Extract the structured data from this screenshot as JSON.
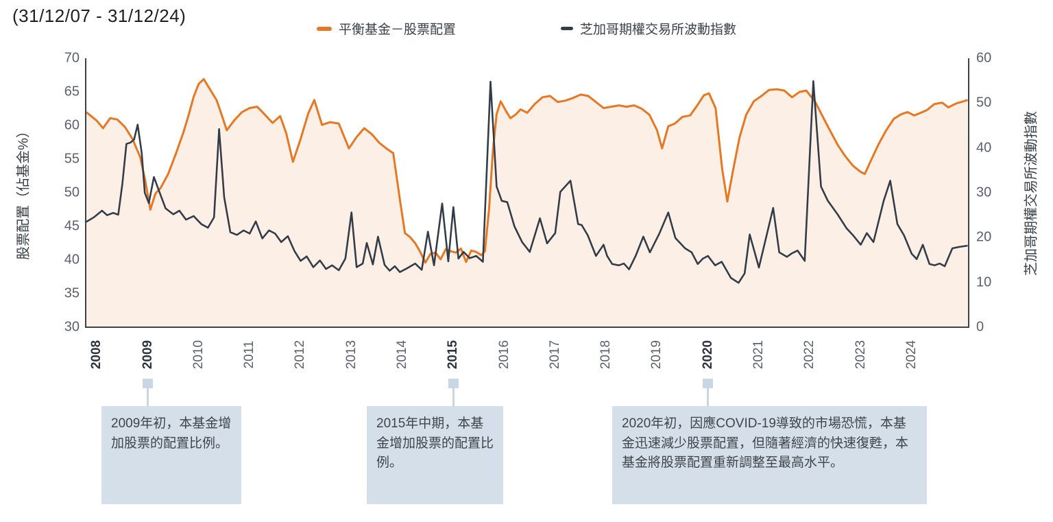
{
  "title": "(31/12/07 - 31/12/24)",
  "legend": [
    {
      "label": "平衡基金－股票配置",
      "color": "#e87722"
    },
    {
      "label": "芝加哥期權交易所波動指數",
      "color": "#333c49"
    }
  ],
  "axis_left": {
    "title": "股票配置（佔基金%）",
    "ticks": [
      70,
      65,
      60,
      55,
      50,
      45,
      40,
      35,
      30
    ]
  },
  "axis_right": {
    "title": "芝加哥期權交易所波動指數",
    "ticks": [
      60,
      50,
      40,
      30,
      20,
      10,
      0
    ]
  },
  "axis_x": {
    "labels": [
      2008,
      2009,
      2010,
      2011,
      2012,
      2013,
      2014,
      2015,
      2016,
      2017,
      2018,
      2019,
      2020,
      2021,
      2022,
      2023,
      2024
    ],
    "bold_labels": [
      2008,
      2009,
      2015,
      2020
    ]
  },
  "annotations": [
    {
      "year": 2009,
      "text": "2009年初，本基金增加股票的配置比例。"
    },
    {
      "year": 2015,
      "text": "2015年中期，本基金增加股票的配置比例。"
    },
    {
      "year": 2020,
      "text": "2020年初，因應COVID-19導致的市場恐慌，本基金迅速減少股票配置，但隨著經濟的快速復甦，本基金將股票配置重新調整至最高水平。"
    }
  ],
  "colors": {
    "allocation_line": "#e87722",
    "allocation_fill": "#fbefe6",
    "vix_line": "#333c49",
    "axis_line": "#3a424e",
    "callout_bg": "#d4dfe9",
    "callout_connector": "#c9d6e3"
  },
  "chart_data": {
    "type": "line",
    "x_domain": [
      2007.78,
      2025.12
    ],
    "left_ylim": [
      30,
      70
    ],
    "right_ylim": [
      0,
      60
    ],
    "grid": false,
    "legend_position": "top",
    "series": [
      {
        "name": "平衡基金－股票配置",
        "axis": "left",
        "color": "#e87722",
        "area_fill": "#fbefe6",
        "points": [
          [
            2007.79,
            62.0
          ],
          [
            2008.0,
            60.7
          ],
          [
            2008.12,
            59.6
          ],
          [
            2008.26,
            61.1
          ],
          [
            2008.4,
            60.9
          ],
          [
            2008.55,
            59.8
          ],
          [
            2008.7,
            58.0
          ],
          [
            2008.85,
            55.3
          ],
          [
            2008.95,
            51.8
          ],
          [
            2009.05,
            47.5
          ],
          [
            2009.15,
            49.9
          ],
          [
            2009.25,
            50.7
          ],
          [
            2009.4,
            52.8
          ],
          [
            2009.55,
            55.8
          ],
          [
            2009.7,
            59.0
          ],
          [
            2009.8,
            61.5
          ],
          [
            2009.9,
            64.3
          ],
          [
            2010.0,
            66.2
          ],
          [
            2010.1,
            66.9
          ],
          [
            2010.22,
            65.4
          ],
          [
            2010.35,
            63.8
          ],
          [
            2010.45,
            61.6
          ],
          [
            2010.55,
            59.3
          ],
          [
            2010.7,
            60.8
          ],
          [
            2010.85,
            62.0
          ],
          [
            2011.0,
            62.6
          ],
          [
            2011.15,
            62.8
          ],
          [
            2011.3,
            61.6
          ],
          [
            2011.45,
            60.4
          ],
          [
            2011.6,
            61.4
          ],
          [
            2011.72,
            58.8
          ],
          [
            2011.85,
            54.6
          ],
          [
            2012.0,
            58.0
          ],
          [
            2012.15,
            61.8
          ],
          [
            2012.27,
            63.8
          ],
          [
            2012.42,
            60.1
          ],
          [
            2012.58,
            60.5
          ],
          [
            2012.75,
            60.3
          ],
          [
            2012.95,
            56.6
          ],
          [
            2013.1,
            58.3
          ],
          [
            2013.25,
            59.6
          ],
          [
            2013.4,
            58.7
          ],
          [
            2013.55,
            57.4
          ],
          [
            2013.7,
            56.5
          ],
          [
            2013.82,
            55.9
          ],
          [
            2013.95,
            49.0
          ],
          [
            2014.05,
            44.0
          ],
          [
            2014.15,
            43.4
          ],
          [
            2014.25,
            42.5
          ],
          [
            2014.35,
            41.2
          ],
          [
            2014.45,
            39.6
          ],
          [
            2014.55,
            40.9
          ],
          [
            2014.65,
            41.1
          ],
          [
            2014.75,
            40.1
          ],
          [
            2014.85,
            41.6
          ],
          [
            2014.95,
            41.3
          ],
          [
            2015.05,
            41.1
          ],
          [
            2015.15,
            41.7
          ],
          [
            2015.25,
            39.7
          ],
          [
            2015.35,
            41.4
          ],
          [
            2015.45,
            41.2
          ],
          [
            2015.55,
            40.7
          ],
          [
            2015.62,
            41.3
          ],
          [
            2015.7,
            47.5
          ],
          [
            2015.78,
            56.5
          ],
          [
            2015.85,
            61.7
          ],
          [
            2015.93,
            63.6
          ],
          [
            2016.03,
            62.2
          ],
          [
            2016.12,
            61.1
          ],
          [
            2016.22,
            61.6
          ],
          [
            2016.32,
            62.4
          ],
          [
            2016.45,
            61.9
          ],
          [
            2016.6,
            63.2
          ],
          [
            2016.75,
            64.2
          ],
          [
            2016.9,
            64.4
          ],
          [
            2017.05,
            63.5
          ],
          [
            2017.2,
            63.7
          ],
          [
            2017.35,
            64.1
          ],
          [
            2017.5,
            64.6
          ],
          [
            2017.65,
            64.4
          ],
          [
            2017.8,
            63.5
          ],
          [
            2017.95,
            62.6
          ],
          [
            2018.1,
            62.8
          ],
          [
            2018.25,
            63.0
          ],
          [
            2018.4,
            62.8
          ],
          [
            2018.55,
            63.0
          ],
          [
            2018.7,
            62.5
          ],
          [
            2018.85,
            61.6
          ],
          [
            2019.0,
            59.3
          ],
          [
            2019.1,
            56.6
          ],
          [
            2019.22,
            59.9
          ],
          [
            2019.35,
            60.3
          ],
          [
            2019.5,
            61.3
          ],
          [
            2019.65,
            61.5
          ],
          [
            2019.8,
            63.1
          ],
          [
            2019.92,
            64.5
          ],
          [
            2020.02,
            64.8
          ],
          [
            2020.15,
            62.6
          ],
          [
            2020.28,
            53.5
          ],
          [
            2020.38,
            48.7
          ],
          [
            2020.5,
            53.6
          ],
          [
            2020.62,
            58.2
          ],
          [
            2020.75,
            61.6
          ],
          [
            2020.9,
            63.6
          ],
          [
            2021.05,
            64.4
          ],
          [
            2021.2,
            65.3
          ],
          [
            2021.35,
            65.4
          ],
          [
            2021.5,
            65.2
          ],
          [
            2021.65,
            64.2
          ],
          [
            2021.8,
            65.0
          ],
          [
            2021.93,
            65.2
          ],
          [
            2022.1,
            63.6
          ],
          [
            2022.25,
            61.4
          ],
          [
            2022.4,
            59.2
          ],
          [
            2022.55,
            57.1
          ],
          [
            2022.7,
            55.4
          ],
          [
            2022.85,
            54.0
          ],
          [
            2023.0,
            53.1
          ],
          [
            2023.08,
            52.8
          ],
          [
            2023.2,
            54.8
          ],
          [
            2023.35,
            57.2
          ],
          [
            2023.5,
            59.3
          ],
          [
            2023.65,
            61.0
          ],
          [
            2023.8,
            61.7
          ],
          [
            2023.92,
            62.0
          ],
          [
            2024.05,
            61.5
          ],
          [
            2024.18,
            61.9
          ],
          [
            2024.3,
            62.3
          ],
          [
            2024.45,
            63.2
          ],
          [
            2024.6,
            63.4
          ],
          [
            2024.72,
            62.7
          ],
          [
            2024.88,
            63.3
          ],
          [
            2025.1,
            63.8
          ]
        ]
      },
      {
        "name": "芝加哥期權交易所波動指數",
        "axis": "right",
        "color": "#333c49",
        "points": [
          [
            2007.79,
            23.5
          ],
          [
            2007.95,
            24.6
          ],
          [
            2008.1,
            26.0
          ],
          [
            2008.2,
            25.0
          ],
          [
            2008.32,
            25.5
          ],
          [
            2008.42,
            25.1
          ],
          [
            2008.5,
            32.0
          ],
          [
            2008.58,
            40.9
          ],
          [
            2008.66,
            41.2
          ],
          [
            2008.73,
            41.9
          ],
          [
            2008.8,
            45.2
          ],
          [
            2008.88,
            38.9
          ],
          [
            2008.94,
            30.0
          ],
          [
            2009.02,
            27.7
          ],
          [
            2009.12,
            33.5
          ],
          [
            2009.25,
            29.5
          ],
          [
            2009.35,
            26.5
          ],
          [
            2009.5,
            25.2
          ],
          [
            2009.62,
            26.0
          ],
          [
            2009.75,
            24.0
          ],
          [
            2009.9,
            24.8
          ],
          [
            2010.05,
            23.0
          ],
          [
            2010.18,
            22.2
          ],
          [
            2010.3,
            24.5
          ],
          [
            2010.4,
            44.2
          ],
          [
            2010.5,
            29.0
          ],
          [
            2010.62,
            21.2
          ],
          [
            2010.75,
            20.6
          ],
          [
            2010.88,
            21.6
          ],
          [
            2011.0,
            20.9
          ],
          [
            2011.12,
            23.6
          ],
          [
            2011.25,
            19.8
          ],
          [
            2011.38,
            21.6
          ],
          [
            2011.5,
            20.9
          ],
          [
            2011.62,
            19.0
          ],
          [
            2011.75,
            20.3
          ],
          [
            2011.88,
            17.0
          ],
          [
            2012.0,
            14.8
          ],
          [
            2012.12,
            15.8
          ],
          [
            2012.25,
            13.4
          ],
          [
            2012.38,
            14.9
          ],
          [
            2012.5,
            13.0
          ],
          [
            2012.62,
            13.8
          ],
          [
            2012.75,
            12.7
          ],
          [
            2012.88,
            15.3
          ],
          [
            2013.0,
            25.6
          ],
          [
            2013.1,
            13.4
          ],
          [
            2013.22,
            14.2
          ],
          [
            2013.3,
            18.8
          ],
          [
            2013.42,
            14.0
          ],
          [
            2013.52,
            20.2
          ],
          [
            2013.65,
            13.9
          ],
          [
            2013.75,
            12.6
          ],
          [
            2013.85,
            13.6
          ],
          [
            2013.95,
            12.3
          ],
          [
            2014.1,
            13.2
          ],
          [
            2014.25,
            14.2
          ],
          [
            2014.38,
            12.8
          ],
          [
            2014.5,
            21.3
          ],
          [
            2014.62,
            13.8
          ],
          [
            2014.78,
            27.6
          ],
          [
            2014.9,
            14.7
          ],
          [
            2015.0,
            26.8
          ],
          [
            2015.1,
            15.3
          ],
          [
            2015.2,
            16.8
          ],
          [
            2015.32,
            15.4
          ],
          [
            2015.45,
            15.9
          ],
          [
            2015.58,
            14.6
          ],
          [
            2015.73,
            54.8
          ],
          [
            2015.85,
            31.4
          ],
          [
            2015.95,
            28.2
          ],
          [
            2016.06,
            27.9
          ],
          [
            2016.2,
            22.5
          ],
          [
            2016.35,
            19.0
          ],
          [
            2016.5,
            16.8
          ],
          [
            2016.7,
            24.3
          ],
          [
            2016.84,
            18.7
          ],
          [
            2017.0,
            21.0
          ],
          [
            2017.1,
            30.2
          ],
          [
            2017.3,
            32.7
          ],
          [
            2017.45,
            23.0
          ],
          [
            2017.52,
            22.8
          ],
          [
            2017.64,
            20.5
          ],
          [
            2017.8,
            15.9
          ],
          [
            2017.95,
            18.4
          ],
          [
            2018.02,
            15.9
          ],
          [
            2018.12,
            14.1
          ],
          [
            2018.25,
            13.8
          ],
          [
            2018.35,
            14.2
          ],
          [
            2018.45,
            12.9
          ],
          [
            2018.58,
            15.9
          ],
          [
            2018.73,
            20.2
          ],
          [
            2018.86,
            16.7
          ],
          [
            2019.05,
            21.0
          ],
          [
            2019.22,
            25.6
          ],
          [
            2019.36,
            19.9
          ],
          [
            2019.55,
            17.6
          ],
          [
            2019.68,
            16.7
          ],
          [
            2019.8,
            14.1
          ],
          [
            2019.9,
            15.3
          ],
          [
            2020.0,
            15.9
          ],
          [
            2020.14,
            13.8
          ],
          [
            2020.27,
            14.6
          ],
          [
            2020.45,
            11.0
          ],
          [
            2020.6,
            9.9
          ],
          [
            2020.72,
            12.0
          ],
          [
            2020.82,
            20.7
          ],
          [
            2021.0,
            13.3
          ],
          [
            2021.28,
            26.6
          ],
          [
            2021.4,
            16.7
          ],
          [
            2021.55,
            15.7
          ],
          [
            2021.65,
            16.5
          ],
          [
            2021.76,
            17.1
          ],
          [
            2021.9,
            14.8
          ],
          [
            2022.07,
            54.9
          ],
          [
            2022.22,
            31.4
          ],
          [
            2022.35,
            28.3
          ],
          [
            2022.55,
            25.1
          ],
          [
            2022.72,
            22.1
          ],
          [
            2022.85,
            20.5
          ],
          [
            2023.0,
            18.4
          ],
          [
            2023.12,
            21.0
          ],
          [
            2023.25,
            19.0
          ],
          [
            2023.45,
            28.2
          ],
          [
            2023.58,
            32.7
          ],
          [
            2023.72,
            23.0
          ],
          [
            2023.85,
            20.5
          ],
          [
            2024.0,
            16.4
          ],
          [
            2024.1,
            15.2
          ],
          [
            2024.22,
            18.4
          ],
          [
            2024.35,
            14.1
          ],
          [
            2024.45,
            13.8
          ],
          [
            2024.55,
            14.2
          ],
          [
            2024.65,
            13.6
          ],
          [
            2024.8,
            17.6
          ],
          [
            2024.92,
            17.9
          ],
          [
            2025.1,
            18.2
          ]
        ]
      }
    ]
  }
}
